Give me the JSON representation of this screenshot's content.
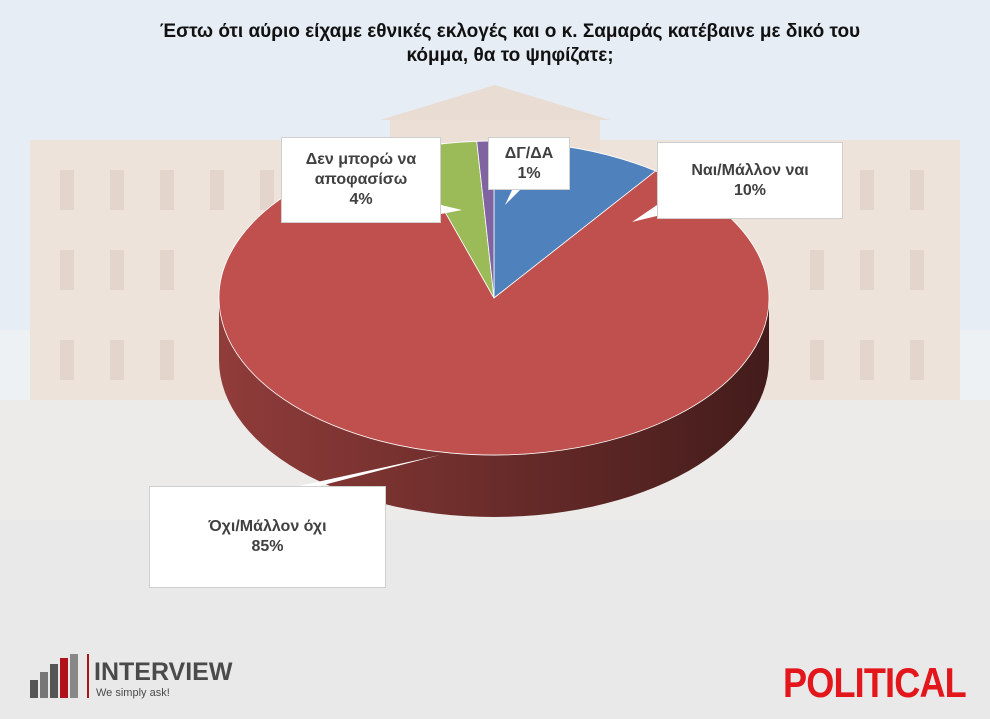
{
  "chart_data": {
    "type": "pie",
    "title": "Έστω ότι αύριο είχαμε εθνικές εκλογές και ο κ. Σαμαράς κατέβαινε με δικό του κόμμα, θα το ψηφίζατε;",
    "slices": [
      {
        "label": "Ναι/Μάλλον ναι",
        "value": 10,
        "value_label": "10%",
        "color": "#4f81bd"
      },
      {
        "label": "Όχι/Μάλλον όχι",
        "value": 85,
        "value_label": "85%",
        "color": "#c0504d"
      },
      {
        "label": "Δεν μπορώ να αποφασίσω",
        "value": 4,
        "value_label": "4%",
        "color": "#9bbb59"
      },
      {
        "label": "ΔΓ/ΔΑ",
        "value": 1,
        "value_label": "1%",
        "color": "#8064a2"
      }
    ],
    "style": "3d"
  },
  "callouts": {
    "yes": {
      "line1": "Ναι/Μάλλον ναι",
      "line2": "10%"
    },
    "no": {
      "line1": "Όχι/Μάλλον όχι",
      "line2": "85%"
    },
    "undecided": {
      "line1": "Δεν μπορώ να",
      "line2": "αποφασίσω",
      "line3": "4%"
    },
    "dk": {
      "line1": "ΔΓ/ΔΑ",
      "line2": "1%"
    }
  },
  "branding": {
    "left_name": "INTERVIEW",
    "left_tagline": "We simply ask!",
    "right_name": "POLITICAL",
    "left_color": "#b0121a",
    "right_color": "#e3161b"
  }
}
